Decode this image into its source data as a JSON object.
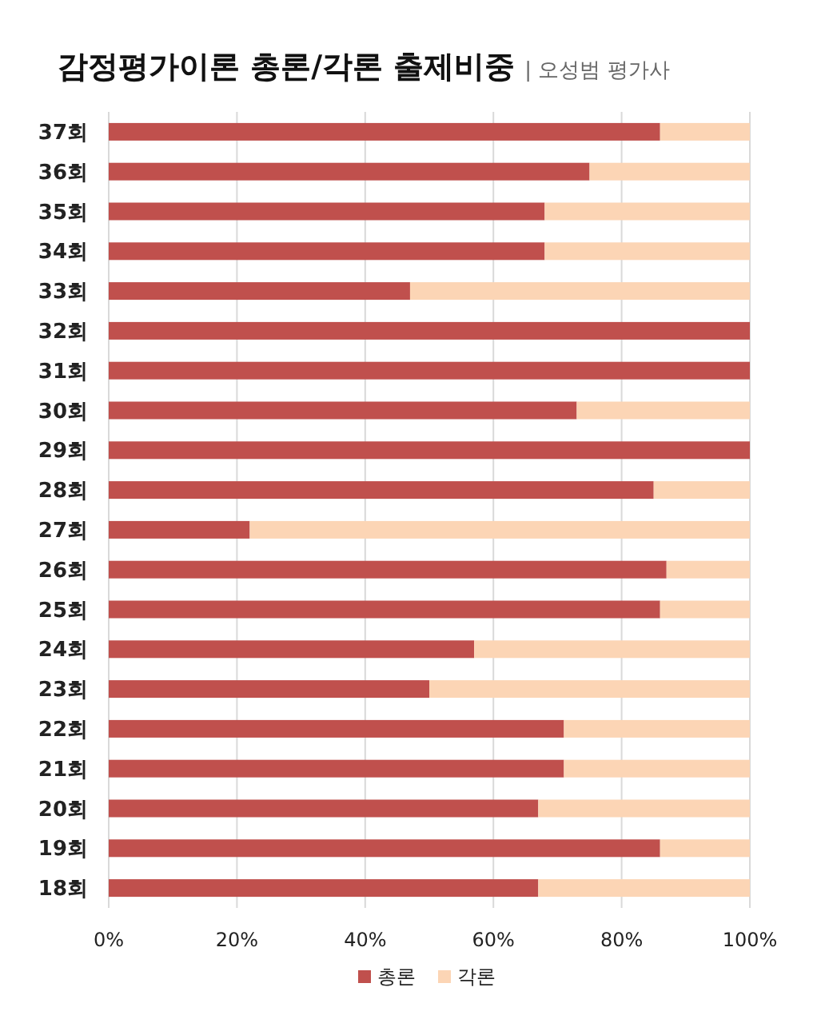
{
  "chart_data": {
    "type": "bar",
    "orientation": "horizontal",
    "stacked": true,
    "title": "감정평가이론 총론/각론 출제비중",
    "subtitle": "| 오성범 평가사",
    "categories": [
      "37회",
      "36회",
      "35회",
      "34회",
      "33회",
      "32회",
      "31회",
      "30회",
      "29회",
      "28회",
      "27회",
      "26회",
      "25회",
      "24회",
      "23회",
      "22회",
      "21회",
      "20회",
      "19회",
      "18회"
    ],
    "series": [
      {
        "name": "총론",
        "color": "#c0504d",
        "values": [
          86,
          75,
          68,
          68,
          47,
          100,
          100,
          73,
          100,
          85,
          22,
          87,
          86,
          57,
          50,
          71,
          71,
          67,
          86,
          67
        ]
      },
      {
        "name": "각론",
        "color": "#fcd5b5",
        "values": [
          14,
          25,
          32,
          32,
          53,
          0,
          0,
          27,
          0,
          15,
          78,
          13,
          14,
          43,
          50,
          29,
          29,
          33,
          14,
          33
        ]
      }
    ],
    "xlim": [
      0,
      100
    ],
    "xticks": [
      {
        "value": 0,
        "label": "0%"
      },
      {
        "value": 20,
        "label": "20%"
      },
      {
        "value": 40,
        "label": "40%"
      },
      {
        "value": 60,
        "label": "60%"
      },
      {
        "value": 80,
        "label": "80%"
      },
      {
        "value": 100,
        "label": "100%"
      }
    ],
    "grid": "x",
    "legend": "bottom"
  }
}
